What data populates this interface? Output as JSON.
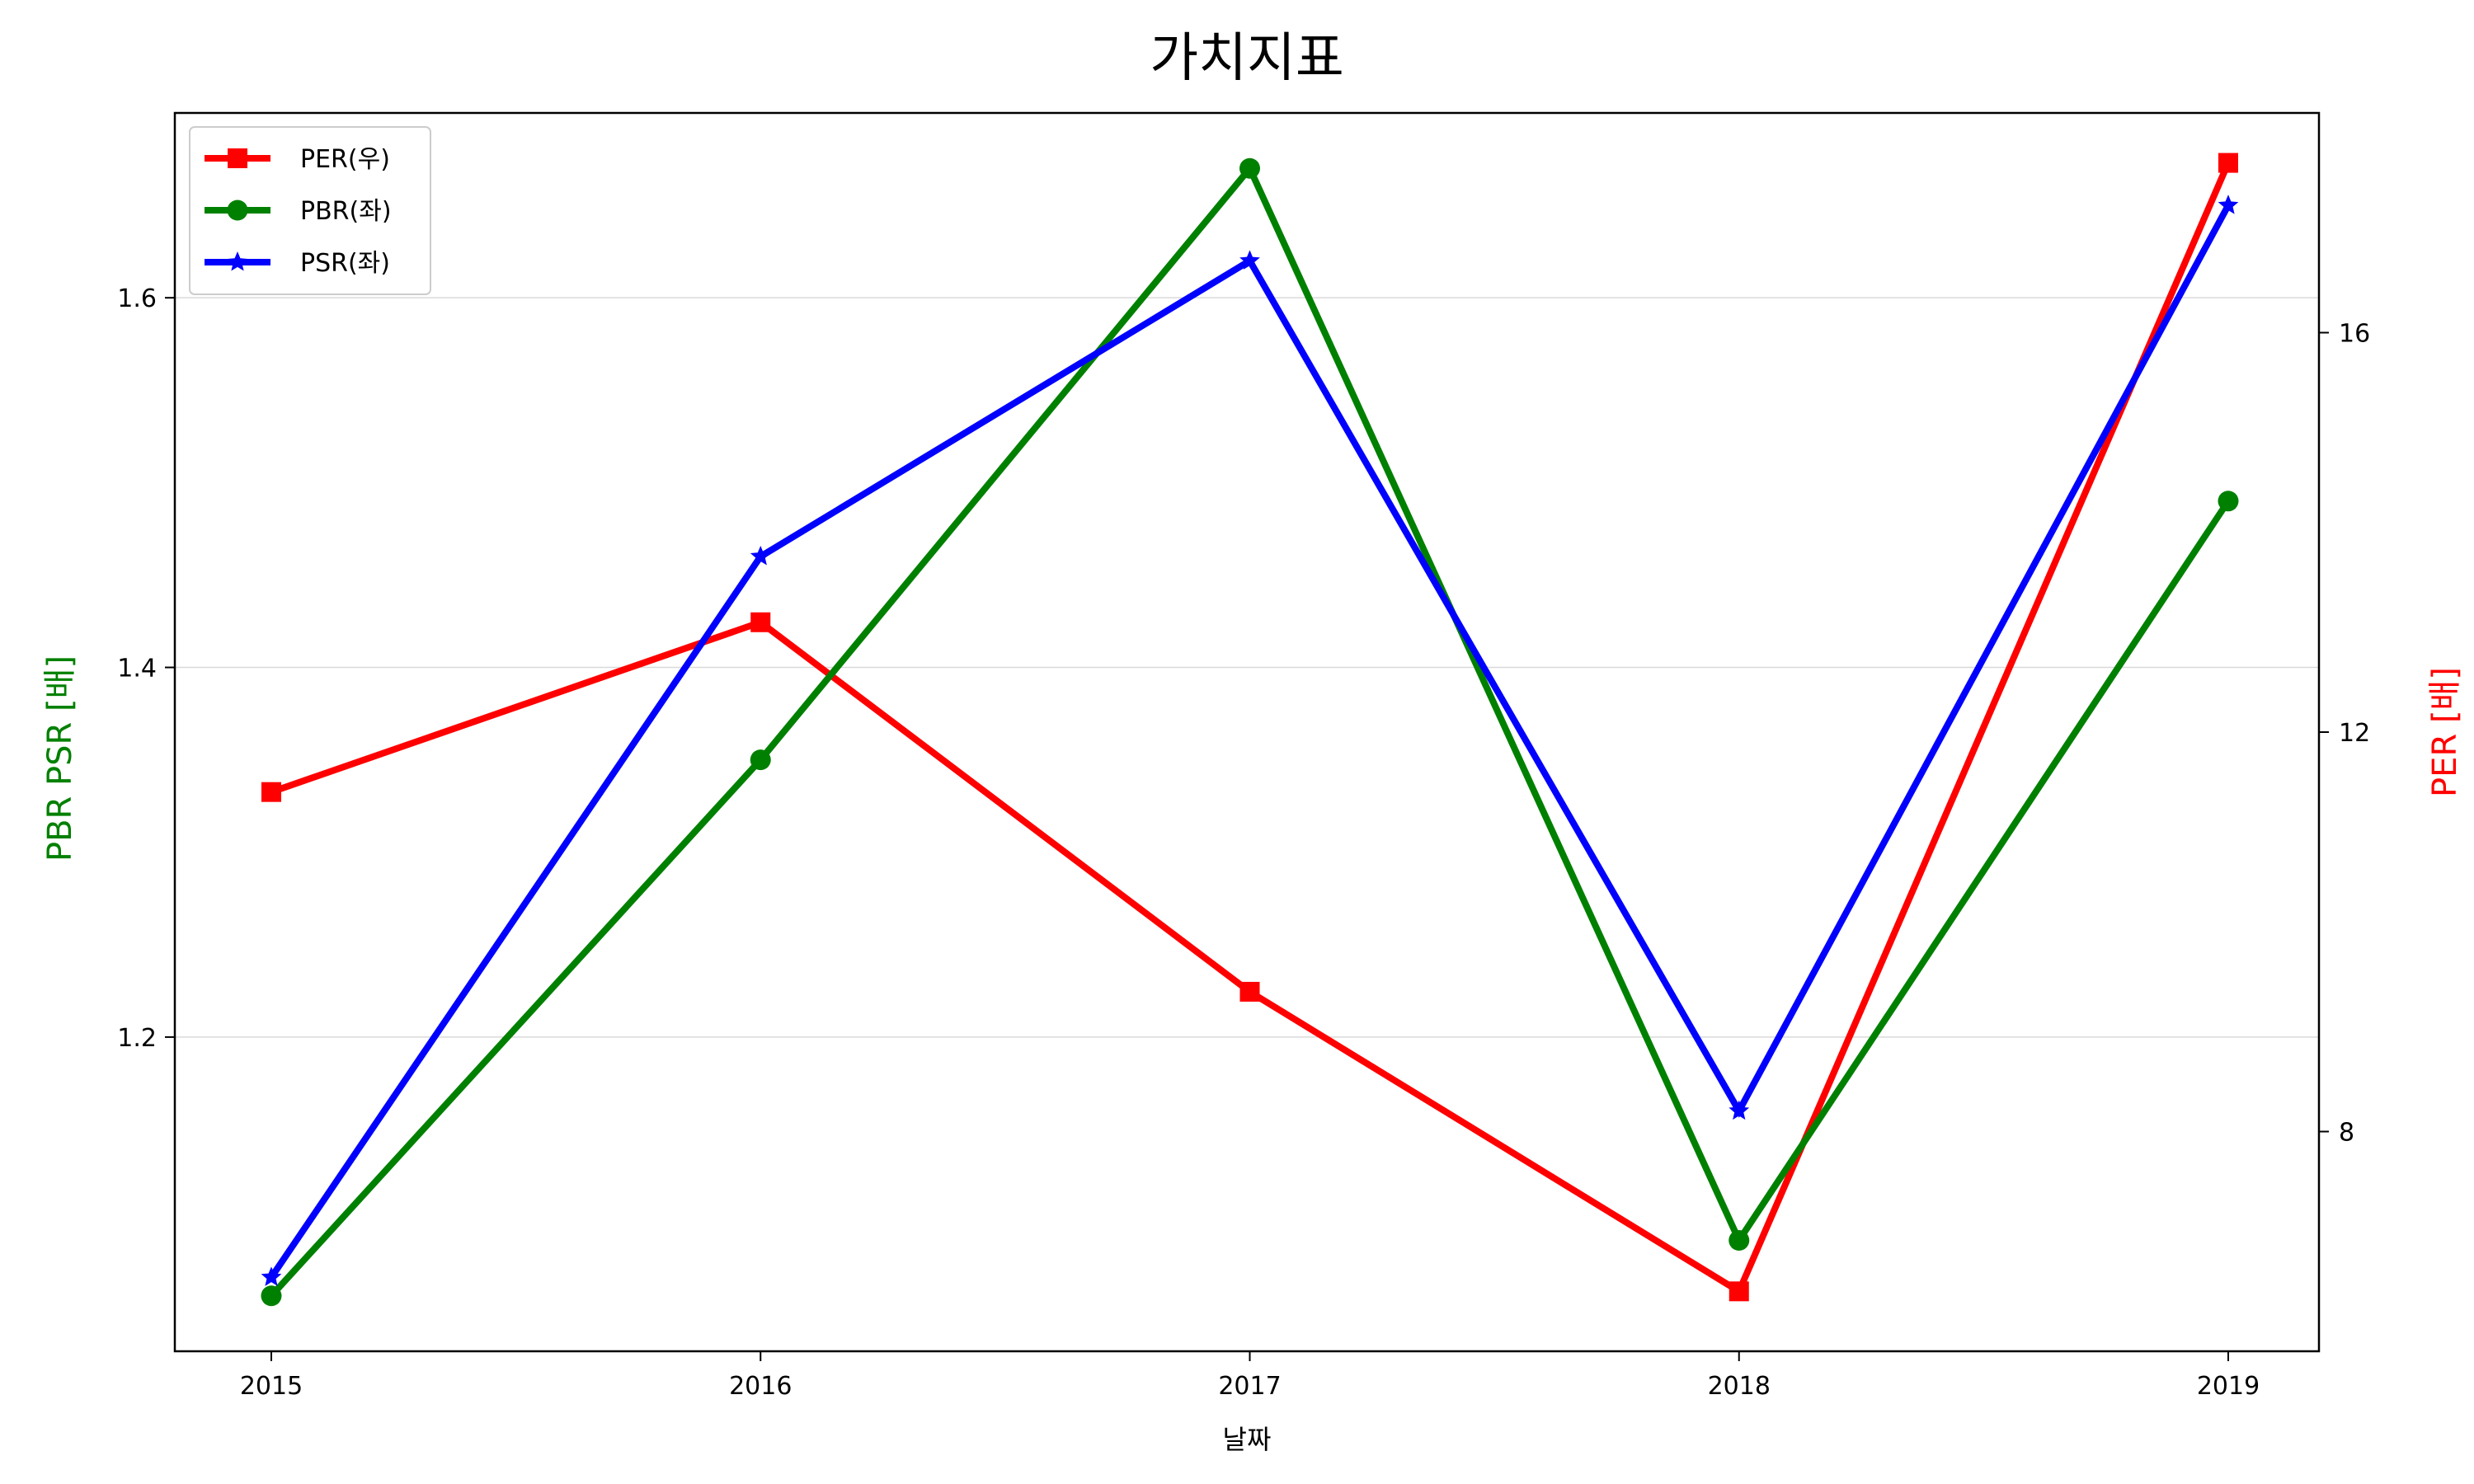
{
  "chart_data": {
    "type": "line",
    "title": "가치지표",
    "xlabel": "날짜",
    "ylabel_left": "PBR PSR [배]",
    "ylabel_right": "PER [배]",
    "categories": [
      "2015",
      "2016",
      "2017",
      "2018",
      "2019"
    ],
    "ylim_left": [
      1.03,
      1.7
    ],
    "ylim_right": [
      5.8,
      18.2
    ],
    "left_ticks": [
      "1.2",
      "1.4",
      "1.6"
    ],
    "right_ticks": [
      "8",
      "12",
      "16"
    ],
    "grid": "horizontal (left axis)",
    "legend_position": "top-left",
    "series": [
      {
        "name": "PER(우)",
        "axis": "right",
        "color": "#ff0000",
        "marker": "square",
        "values": [
          11.4,
          13.1,
          9.4,
          6.4,
          17.7
        ]
      },
      {
        "name": "PBR(좌)",
        "axis": "left",
        "color": "#008000",
        "marker": "circle",
        "values": [
          1.06,
          1.35,
          1.67,
          1.09,
          1.49
        ]
      },
      {
        "name": "PSR(좌)",
        "axis": "left",
        "color": "#0000ff",
        "marker": "star",
        "values": [
          1.07,
          1.46,
          1.62,
          1.16,
          1.65
        ]
      }
    ]
  }
}
